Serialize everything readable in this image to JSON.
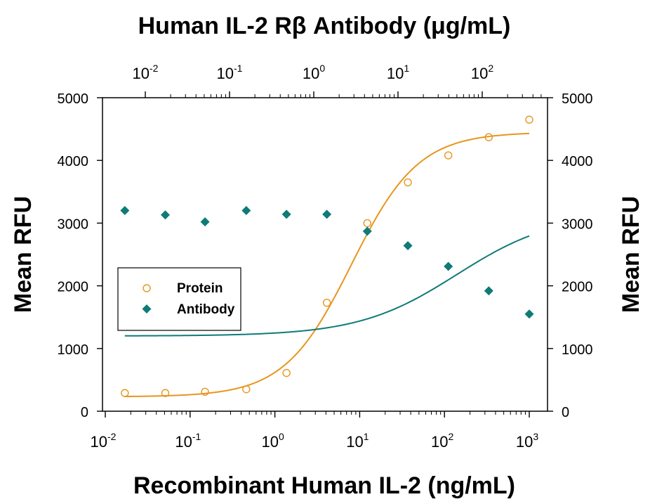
{
  "chart_data": {
    "type": "scatter",
    "title": "Human IL-2 Rβ Antibody (μg/mL)",
    "xlabel": "Recombinant Human IL-2 (ng/mL)",
    "ylabel": "Mean RFU",
    "ylabel_right": "Mean RFU",
    "x_scale": "log",
    "xlim": [
      0.01,
      1000
    ],
    "x_ticks": [
      "10^-2",
      "10^-1",
      "10^0",
      "10^1",
      "10^2",
      "10^3"
    ],
    "top_axis_label": "Human IL-2 Rβ Antibody (μg/mL)",
    "top_axis_scale": "log",
    "top_ticks": [
      "10^-2",
      "10^-1",
      "10^0",
      "10^1",
      "10^2"
    ],
    "ylim": [
      0,
      5000
    ],
    "y_ticks": [
      0,
      1000,
      2000,
      3000,
      4000,
      5000
    ],
    "legend_position": "center-left",
    "series": [
      {
        "name": "Protein",
        "marker": "open-circle",
        "color": "#E8951E",
        "x": [
          0.017,
          0.051,
          0.15,
          0.46,
          1.37,
          4.1,
          12.3,
          37,
          111,
          333,
          1000
        ],
        "y": [
          290,
          290,
          310,
          350,
          610,
          1730,
          3000,
          3650,
          4080,
          4370,
          4650
        ],
        "fit_curve": {
          "bottom": 230,
          "top": 4450,
          "ec50": 8.0,
          "hill": 1.1
        }
      },
      {
        "name": "Antibody",
        "marker": "filled-diamond",
        "color": "#0E7B77",
        "x": [
          0.017,
          0.051,
          0.15,
          0.46,
          1.37,
          4.1,
          12.3,
          37,
          111,
          333,
          1000
        ],
        "y": [
          3200,
          3130,
          3020,
          3200,
          3140,
          3140,
          2870,
          2640,
          2310,
          1920,
          1550
        ],
        "fit_curve": {
          "bottom": 1200,
          "top": 3160,
          "ec50": 140,
          "hill": 0.75
        }
      }
    ]
  }
}
